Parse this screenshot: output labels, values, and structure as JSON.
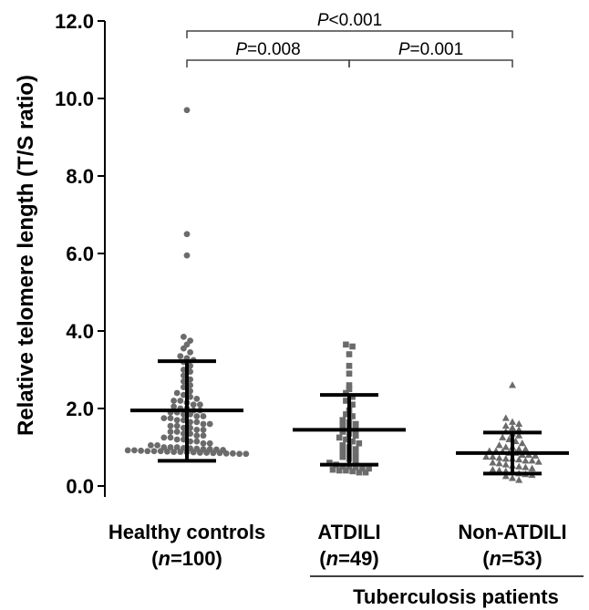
{
  "chart_data": {
    "type": "scatter",
    "ylabel": "Relative telomere length (T/S ratio)",
    "ylim": [
      0,
      12
    ],
    "yticks": [
      "0.0",
      "2.0",
      "4.0",
      "6.0",
      "8.0",
      "10.0",
      "12.0"
    ],
    "categories": [
      {
        "name": "Healthy controls",
        "n_prefix": "(",
        "n_italic": "n",
        "n_suffix": "=100)"
      },
      {
        "name": "ATDILI",
        "n_prefix": "(",
        "n_italic": "n",
        "n_suffix": "=49)"
      },
      {
        "name": "Non-ATDILI",
        "n_prefix": "(",
        "n_italic": "n",
        "n_suffix": "=53)"
      }
    ],
    "group_label": "Tuberculosis patients",
    "series": [
      {
        "marker": "circle",
        "color": "#6b6b6b",
        "mean": 1.95,
        "sd_low": 0.65,
        "sd_high": 3.22,
        "values": [
          9.7,
          6.5,
          5.95,
          3.85,
          3.75,
          3.65,
          3.55,
          3.45,
          3.35,
          3.3,
          3.25,
          3.2,
          3.1,
          3.0,
          2.95,
          2.85,
          2.75,
          2.7,
          2.6,
          2.55,
          2.45,
          2.4,
          2.35,
          2.3,
          2.25,
          2.2,
          2.2,
          2.15,
          2.1,
          2.1,
          2.05,
          2.0,
          2.0,
          1.95,
          1.95,
          1.9,
          1.9,
          1.85,
          1.85,
          1.8,
          1.8,
          1.75,
          1.75,
          1.7,
          1.7,
          1.65,
          1.65,
          1.6,
          1.6,
          1.55,
          1.55,
          1.5,
          1.5,
          1.45,
          1.45,
          1.4,
          1.4,
          1.35,
          1.35,
          1.3,
          1.3,
          1.25,
          1.25,
          1.2,
          1.2,
          1.15,
          1.15,
          1.1,
          1.1,
          1.05,
          1.05,
          1.0,
          1.0,
          1.0,
          0.98,
          0.97,
          0.96,
          0.95,
          0.95,
          0.94,
          0.93,
          0.92,
          0.92,
          0.91,
          0.9,
          0.9,
          0.9,
          0.89,
          0.88,
          0.88,
          0.87,
          0.87,
          0.86,
          0.86,
          0.85,
          0.85,
          0.84,
          0.84,
          0.83,
          0.83
        ]
      },
      {
        "marker": "square",
        "color": "#6b6b6b",
        "mean": 1.45,
        "sd_low": 0.55,
        "sd_high": 2.35,
        "values": [
          3.65,
          3.6,
          3.4,
          3.1,
          2.9,
          2.6,
          2.5,
          2.4,
          2.3,
          2.2,
          2.1,
          1.95,
          1.85,
          1.8,
          1.7,
          1.65,
          1.6,
          1.55,
          1.5,
          1.45,
          1.4,
          1.35,
          1.3,
          1.25,
          1.2,
          1.15,
          1.1,
          1.05,
          1.0,
          0.95,
          0.9,
          0.85,
          0.8,
          0.75,
          0.7,
          0.65,
          0.6,
          0.55,
          0.5,
          0.5,
          0.48,
          0.45,
          0.45,
          0.42,
          0.4,
          0.4,
          0.38,
          0.35,
          0.35
        ]
      },
      {
        "marker": "triangle",
        "color": "#6b6b6b",
        "mean": 0.85,
        "sd_low": 0.32,
        "sd_high": 1.38,
        "values": [
          2.6,
          1.75,
          1.65,
          1.6,
          1.55,
          1.5,
          1.45,
          1.4,
          1.35,
          1.3,
          1.25,
          1.2,
          1.15,
          1.1,
          1.05,
          1.0,
          1.0,
          0.95,
          0.95,
          0.9,
          0.9,
          0.88,
          0.85,
          0.85,
          0.8,
          0.8,
          0.78,
          0.75,
          0.75,
          0.72,
          0.7,
          0.7,
          0.68,
          0.65,
          0.65,
          0.62,
          0.6,
          0.58,
          0.55,
          0.52,
          0.5,
          0.48,
          0.45,
          0.42,
          0.4,
          0.38,
          0.35,
          0.32,
          0.3,
          0.28,
          0.25,
          0.2,
          0.15
        ]
      }
    ],
    "comparisons": [
      {
        "from": 0,
        "to": 2,
        "level": 2,
        "p_italic": "P",
        "p_rest": "<0.001"
      },
      {
        "from": 0,
        "to": 1,
        "level": 1,
        "p_italic": "P",
        "p_rest": "=0.008"
      },
      {
        "from": 1,
        "to": 2,
        "level": 1,
        "p_italic": "P",
        "p_rest": "=0.001"
      }
    ]
  }
}
